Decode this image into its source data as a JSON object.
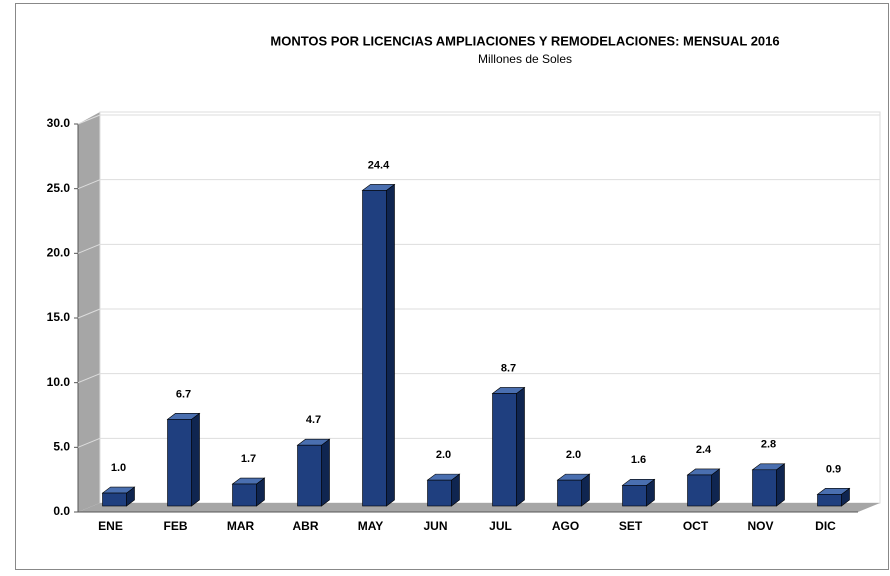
{
  "chart_data": {
    "type": "bar",
    "title": "MONTOS POR LICENCIAS AMPLIACIONES Y REMODELACIONES:  MENSUAL 2016",
    "subtitle": "Millones de Soles",
    "categories": [
      "ENE",
      "FEB",
      "MAR",
      "ABR",
      "MAY",
      "JUN",
      "JUL",
      "AGO",
      "SET",
      "OCT",
      "NOV",
      "DIC"
    ],
    "values": [
      1.0,
      6.7,
      1.7,
      4.7,
      24.4,
      2.0,
      8.7,
      2.0,
      1.6,
      2.4,
      2.8,
      0.9
    ],
    "value_labels": [
      "1.0",
      "6.7",
      "1.7",
      "4.7",
      "24.4",
      "2.0",
      "8.7",
      "2.0",
      "1.6",
      "2.4",
      "2.8",
      "0.9"
    ],
    "color": "#1f3f7f",
    "ylim": [
      0,
      30
    ],
    "yticks": [
      {
        "value": 0,
        "label": "0.0"
      },
      {
        "value": 5,
        "label": "5.0"
      },
      {
        "value": 10,
        "label": "10.0"
      },
      {
        "value": 15,
        "label": "15.0"
      },
      {
        "value": 20,
        "label": "20.0"
      },
      {
        "value": 25,
        "label": "25.0"
      },
      {
        "value": 30,
        "label": "30.0"
      }
    ],
    "grid": true
  }
}
